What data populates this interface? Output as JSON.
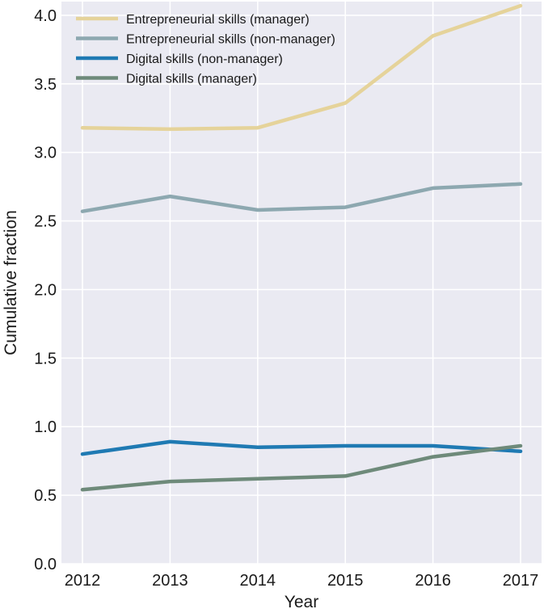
{
  "chart_data": {
    "type": "line",
    "title": "",
    "xlabel": "Year",
    "ylabel": "Cumulative fraction",
    "x": [
      2012,
      2013,
      2014,
      2015,
      2016,
      2017
    ],
    "xticks": [
      "2012",
      "2013",
      "2014",
      "2015",
      "2016",
      "2017"
    ],
    "yticks": [
      "0.0",
      "0.5",
      "1.0",
      "1.5",
      "2.0",
      "2.5",
      "3.0",
      "3.5",
      "4.0"
    ],
    "ylim": [
      0,
      4.1
    ],
    "grid": true,
    "legend_position": "top-left",
    "series": [
      {
        "name": "Entrepreneurial skills (manager)",
        "color": "#e5d39a",
        "values": [
          3.18,
          3.17,
          3.18,
          3.36,
          3.85,
          4.07
        ]
      },
      {
        "name": "Entrepreneurial skills (non-manager)",
        "color": "#8da8b0",
        "values": [
          2.57,
          2.68,
          2.58,
          2.6,
          2.74,
          2.77
        ]
      },
      {
        "name": "Digital skills (non-manager)",
        "color": "#1f7ab3",
        "values": [
          0.8,
          0.89,
          0.85,
          0.86,
          0.86,
          0.82
        ]
      },
      {
        "name": "Digital skills (manager)",
        "color": "#6e8a7a",
        "values": [
          0.54,
          0.6,
          0.62,
          0.64,
          0.78,
          0.86
        ]
      }
    ]
  },
  "colors": {
    "plot_background": "#eaeaf2",
    "grid": "#ffffff"
  }
}
